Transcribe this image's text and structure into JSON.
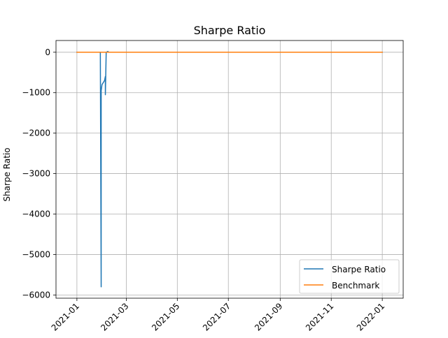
{
  "chart_data": {
    "type": "line",
    "title": "Sharpe Ratio",
    "xlabel": "",
    "ylabel": "Sharpe Ratio",
    "xlim": [
      "2020-12-07",
      "2022-01-26"
    ],
    "ylim": [
      -6080,
      290
    ],
    "x_ticks": [
      "2021-01",
      "2021-03",
      "2021-05",
      "2021-07",
      "2021-09",
      "2021-11",
      "2022-01"
    ],
    "y_ticks": [
      0,
      -1000,
      -2000,
      -3000,
      -4000,
      -5000,
      -6000
    ],
    "y_tick_labels": [
      "0",
      "−1000",
      "−2000",
      "−3000",
      "−4000",
      "−5000",
      "−6000"
    ],
    "grid": true,
    "legend_position": "lower-right",
    "series": [
      {
        "name": "Sharpe Ratio",
        "color": "#1f77b4",
        "points": [
          [
            "2021-01-01",
            0
          ],
          [
            "2021-01-29",
            0
          ],
          [
            "2021-01-29",
            -30
          ],
          [
            "2021-01-30",
            -5800
          ],
          [
            "2021-01-30",
            -950
          ],
          [
            "2021-01-31",
            -800
          ],
          [
            "2021-02-03",
            -700
          ],
          [
            "2021-02-04",
            -600
          ],
          [
            "2021-02-04",
            -1050
          ],
          [
            "2021-02-05",
            0
          ],
          [
            "2021-02-07",
            20
          ],
          [
            "2021-02-08",
            0
          ],
          [
            "2022-01-01",
            0
          ]
        ]
      },
      {
        "name": "Benchmark",
        "color": "#ff7f0e",
        "points": [
          [
            "2021-01-01",
            0
          ],
          [
            "2022-01-01",
            0
          ]
        ]
      }
    ]
  }
}
